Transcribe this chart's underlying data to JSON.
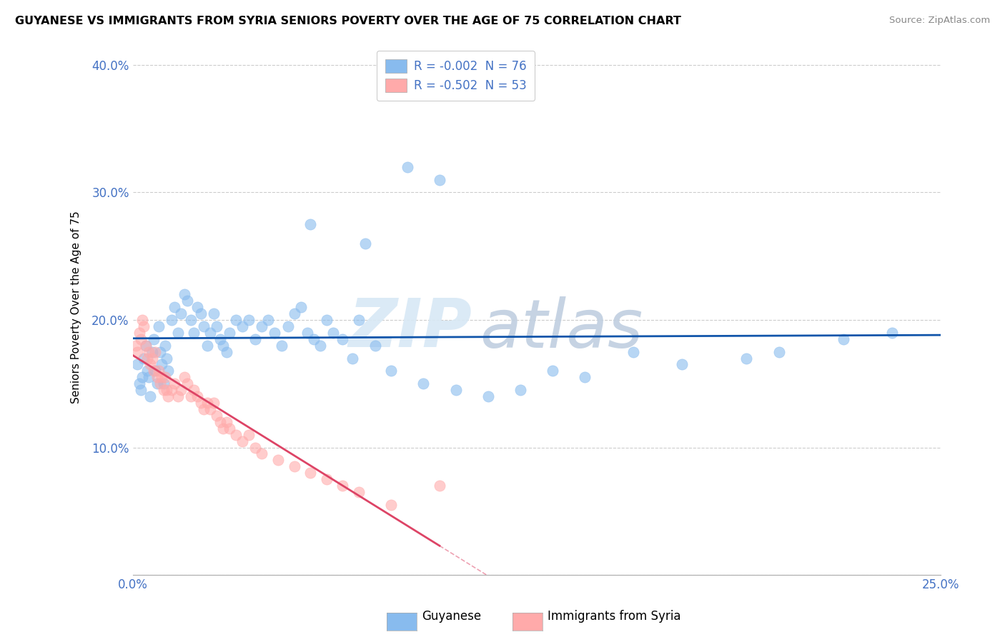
{
  "title": "GUYANESE VS IMMIGRANTS FROM SYRIA SENIORS POVERTY OVER THE AGE OF 75 CORRELATION CHART",
  "source": "Source: ZipAtlas.com",
  "ylabel": "Seniors Poverty Over the Age of 75",
  "xlim": [
    0.0,
    25.0
  ],
  "ylim": [
    0.0,
    42.0
  ],
  "ytick_values": [
    0,
    10,
    20,
    30,
    40
  ],
  "ytick_labels": [
    "",
    "10.0%",
    "20.0%",
    "30.0%",
    "40.0%"
  ],
  "legend_text_1": "R = -0.002  N = 76",
  "legend_text_2": "R = -0.502  N = 53",
  "legend_label_1": "Guyanese",
  "legend_label_2": "Immigrants from Syria",
  "color_blue": "#88bbee",
  "color_pink": "#ffaaaa",
  "color_blue_line": "#1155aa",
  "color_pink_line": "#dd4466",
  "color_legend_text": "#4472c4",
  "watermark_zip": "ZIP",
  "watermark_atlas": "atlas",
  "guyanese_x": [
    0.15,
    0.2,
    0.25,
    0.3,
    0.35,
    0.4,
    0.45,
    0.5,
    0.55,
    0.6,
    0.65,
    0.7,
    0.75,
    0.8,
    0.85,
    0.9,
    0.95,
    1.0,
    1.05,
    1.1,
    1.2,
    1.3,
    1.4,
    1.5,
    1.6,
    1.7,
    1.8,
    1.9,
    2.0,
    2.1,
    2.2,
    2.3,
    2.4,
    2.5,
    2.6,
    2.7,
    2.8,
    2.9,
    3.0,
    3.2,
    3.4,
    3.6,
    3.8,
    4.0,
    4.2,
    4.4,
    4.6,
    4.8,
    5.0,
    5.2,
    5.4,
    5.6,
    5.8,
    6.0,
    6.2,
    6.5,
    6.8,
    7.0,
    7.5,
    8.0,
    9.0,
    10.0,
    11.0,
    12.0,
    13.0,
    14.0,
    15.5,
    17.0,
    19.0,
    20.0,
    22.0,
    23.5,
    5.5,
    7.2,
    8.5,
    9.5
  ],
  "guyanese_y": [
    16.5,
    15.0,
    14.5,
    15.5,
    17.0,
    18.0,
    16.0,
    15.5,
    14.0,
    17.5,
    18.5,
    16.0,
    15.0,
    19.5,
    17.5,
    16.5,
    15.0,
    18.0,
    17.0,
    16.0,
    20.0,
    21.0,
    19.0,
    20.5,
    22.0,
    21.5,
    20.0,
    19.0,
    21.0,
    20.5,
    19.5,
    18.0,
    19.0,
    20.5,
    19.5,
    18.5,
    18.0,
    17.5,
    19.0,
    20.0,
    19.5,
    20.0,
    18.5,
    19.5,
    20.0,
    19.0,
    18.0,
    19.5,
    20.5,
    21.0,
    19.0,
    18.5,
    18.0,
    20.0,
    19.0,
    18.5,
    17.0,
    20.0,
    18.0,
    16.0,
    15.0,
    14.5,
    14.0,
    14.5,
    16.0,
    15.5,
    17.5,
    16.5,
    17.0,
    17.5,
    18.5,
    19.0,
    27.5,
    26.0,
    32.0,
    31.0
  ],
  "syria_x": [
    0.1,
    0.15,
    0.2,
    0.25,
    0.3,
    0.35,
    0.4,
    0.45,
    0.5,
    0.55,
    0.6,
    0.65,
    0.7,
    0.75,
    0.8,
    0.85,
    0.9,
    0.95,
    1.0,
    1.05,
    1.1,
    1.2,
    1.3,
    1.4,
    1.5,
    1.6,
    1.7,
    1.8,
    1.9,
    2.0,
    2.1,
    2.2,
    2.3,
    2.4,
    2.5,
    2.6,
    2.7,
    2.8,
    2.9,
    3.0,
    3.2,
    3.4,
    3.6,
    3.8,
    4.0,
    4.5,
    5.0,
    5.5,
    6.0,
    6.5,
    7.0,
    8.0,
    9.5
  ],
  "syria_y": [
    18.0,
    17.5,
    19.0,
    18.5,
    20.0,
    19.5,
    18.0,
    17.0,
    17.5,
    16.5,
    17.0,
    16.0,
    17.5,
    15.5,
    16.0,
    15.0,
    15.5,
    14.5,
    15.5,
    14.5,
    14.0,
    14.5,
    15.0,
    14.0,
    14.5,
    15.5,
    15.0,
    14.0,
    14.5,
    14.0,
    13.5,
    13.0,
    13.5,
    13.0,
    13.5,
    12.5,
    12.0,
    11.5,
    12.0,
    11.5,
    11.0,
    10.5,
    11.0,
    10.0,
    9.5,
    9.0,
    8.5,
    8.0,
    7.5,
    7.0,
    6.5,
    5.5,
    7.0
  ]
}
